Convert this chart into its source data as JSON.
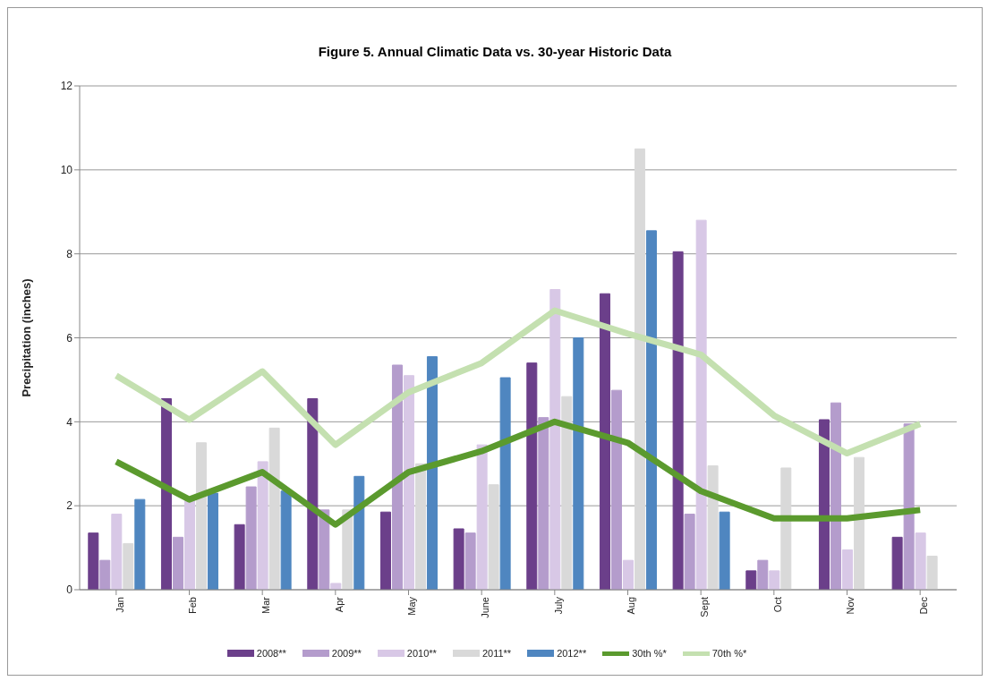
{
  "chart_data": {
    "type": "bar",
    "title": "Figure 5.  Annual Climatic Data vs. 30-year Historic Data",
    "ylabel": "Precipitation (inches)",
    "categories": [
      "Jan",
      "Feb",
      "Mar",
      "Apr",
      "May",
      "June",
      "July",
      "Aug",
      "Sept",
      "Oct",
      "Nov",
      "Dec"
    ],
    "series": [
      {
        "name": "2008**",
        "color": "#6b3f8a",
        "values": [
          1.35,
          4.55,
          1.55,
          4.55,
          1.85,
          1.45,
          5.4,
          7.05,
          8.05,
          0.45,
          4.05,
          1.25
        ]
      },
      {
        "name": "2009**",
        "color": "#b49ccc",
        "values": [
          0.7,
          1.25,
          2.45,
          1.9,
          5.35,
          1.35,
          4.1,
          4.75,
          1.8,
          0.7,
          4.45,
          3.95
        ]
      },
      {
        "name": "2010**",
        "color": "#d8c8e6",
        "values": [
          1.8,
          2.2,
          3.05,
          0.15,
          5.1,
          3.45,
          7.15,
          0.7,
          8.8,
          0.45,
          0.95,
          1.35
        ]
      },
      {
        "name": "2011**",
        "color": "#d9d9d9",
        "values": [
          1.1,
          3.5,
          3.85,
          1.9,
          3.0,
          2.5,
          4.6,
          10.5,
          2.95,
          2.9,
          3.15,
          0.8
        ]
      },
      {
        "name": "2012**",
        "color": "#4f86c0",
        "values": [
          2.15,
          2.3,
          2.35,
          2.7,
          5.55,
          5.05,
          6.0,
          8.55,
          1.85,
          null,
          null,
          null
        ]
      },
      {
        "name": "30th %*",
        "type": "line",
        "color": "#5b9a2e",
        "values": [
          3.05,
          2.15,
          2.8,
          1.55,
          2.8,
          3.3,
          4.0,
          3.5,
          2.35,
          1.7,
          1.7,
          1.9
        ]
      },
      {
        "name": "70th %*",
        "type": "line",
        "color": "#c4e0b0",
        "values": [
          5.1,
          4.05,
          5.2,
          3.45,
          4.7,
          5.4,
          6.65,
          6.1,
          5.6,
          4.15,
          3.25,
          3.95
        ]
      }
    ],
    "ylim": [
      0,
      12
    ],
    "yticks": [
      0,
      2,
      4,
      6,
      8,
      10,
      12
    ],
    "grid": "y",
    "legend": "bottom",
    "marker": "none"
  }
}
